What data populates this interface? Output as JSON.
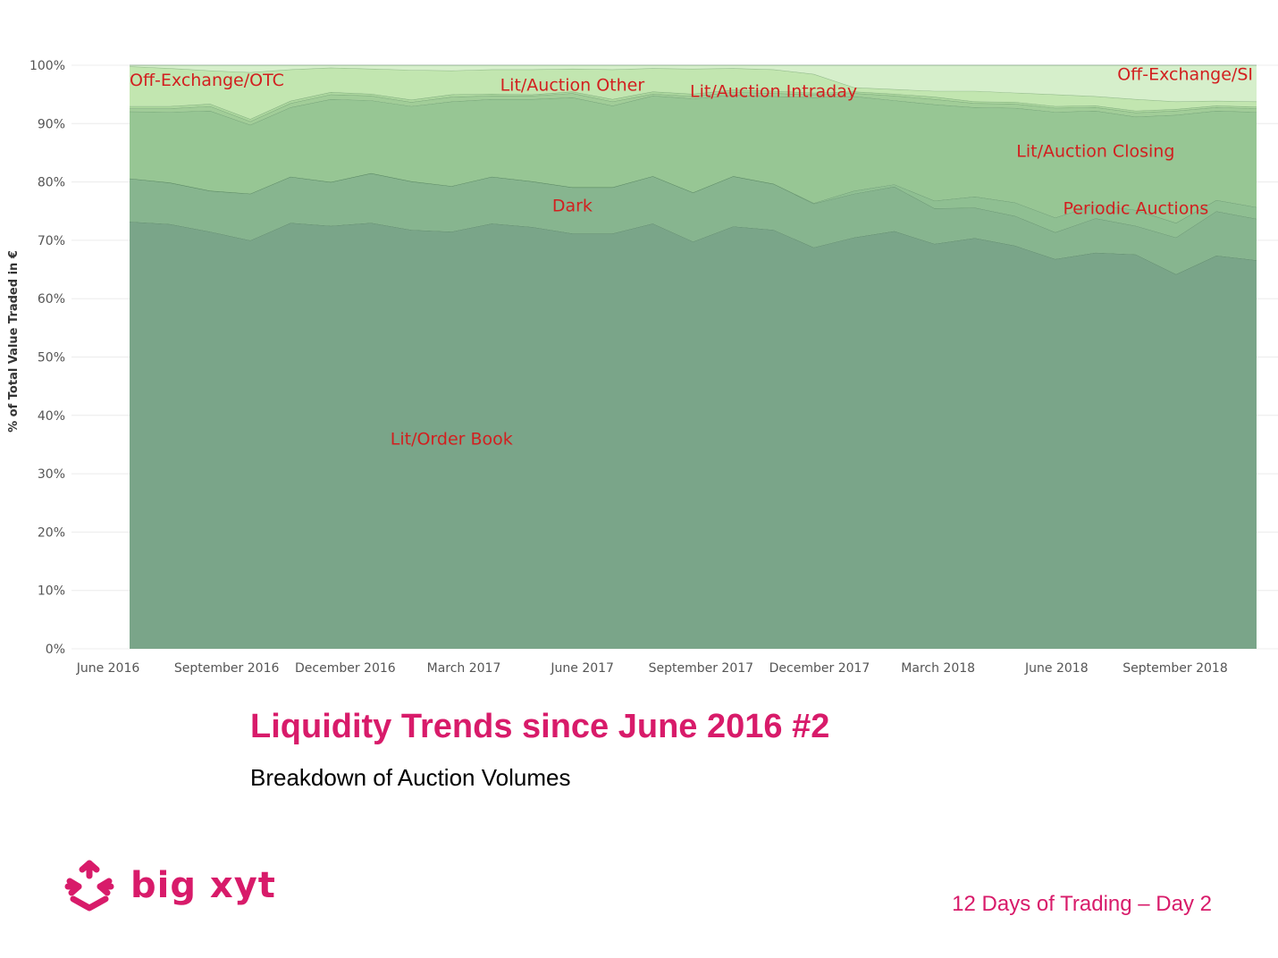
{
  "title": "Liquidity Trends since June 2016 #2",
  "subtitle": "Breakdown of Auction Volumes",
  "footer": "12 Days of Trading – Day 2",
  "brand": {
    "name": "big xyt",
    "color": "#d81b6a"
  },
  "chart_data": {
    "type": "area",
    "stacked": true,
    "ylabel": "% of Total Value Traded in €",
    "ylim": [
      0,
      100
    ],
    "y_ticks": [
      "0%",
      "10%",
      "20%",
      "30%",
      "40%",
      "50%",
      "60%",
      "70%",
      "80%",
      "90%",
      "100%"
    ],
    "x_ticks": [
      "June 2016",
      "September 2016",
      "December 2016",
      "March 2017",
      "June 2017",
      "September 2017",
      "December 2017",
      "March 2018",
      "June 2018",
      "September 2018"
    ],
    "x": [
      "2016-07",
      "2016-08",
      "2016-09",
      "2016-10",
      "2016-11",
      "2016-12",
      "2017-01",
      "2017-02",
      "2017-03",
      "2017-04",
      "2017-05",
      "2017-06",
      "2017-07",
      "2017-08",
      "2017-09",
      "2017-10",
      "2017-11",
      "2017-12",
      "2018-01",
      "2018-02",
      "2018-03",
      "2018-04",
      "2018-05",
      "2018-06",
      "2018-07",
      "2018-08",
      "2018-09",
      "2018-10",
      "2018-11"
    ],
    "cumulative": true,
    "grid": true,
    "series": [
      {
        "name": "Lit/Order Book",
        "color": "#7aa589",
        "label_at": [
          "2017-03",
          35
        ],
        "values": [
          73.2,
          72.8,
          71.5,
          70.0,
          73.0,
          72.5,
          73.0,
          71.8,
          71.5,
          72.9,
          72.3,
          71.2,
          71.2,
          72.9,
          69.8,
          72.4,
          71.8,
          68.8,
          70.5,
          71.6,
          69.4,
          70.4,
          69.1,
          66.8,
          67.9,
          67.6,
          64.2,
          67.4,
          66.6
        ]
      },
      {
        "name": "Dark",
        "color": "#87b58f",
        "label_at": [
          "2017-06",
          75
        ],
        "values": [
          80.6,
          79.9,
          78.5,
          78.0,
          80.9,
          80.0,
          81.5,
          80.1,
          79.3,
          80.9,
          80.1,
          79.1,
          79.1,
          81.0,
          78.2,
          81.0,
          79.7,
          76.3,
          78.0,
          79.2,
          75.5,
          75.6,
          74.2,
          71.4,
          73.8,
          72.5,
          70.5,
          75.0,
          73.7
        ]
      },
      {
        "name": "Periodic Auctions",
        "color": "#8fbf92",
        "label_at": [
          "2018-08",
          74.5
        ],
        "values": [
          80.6,
          79.9,
          78.5,
          78.0,
          80.9,
          80.0,
          81.5,
          80.1,
          79.3,
          80.9,
          80.1,
          79.1,
          79.1,
          81.0,
          78.2,
          81.0,
          79.7,
          76.4,
          78.5,
          79.6,
          76.8,
          77.5,
          76.5,
          73.9,
          76.1,
          75.2,
          73.0,
          76.9,
          75.7
        ]
      },
      {
        "name": "Lit/Auction Closing",
        "color": "#97c694",
        "label_at": [
          "2018-07",
          84.3
        ],
        "values": [
          92.1,
          92.0,
          92.2,
          89.8,
          92.8,
          94.2,
          94.0,
          93.0,
          93.8,
          94.2,
          94.2,
          94.5,
          93.1,
          94.8,
          94.3,
          94.9,
          94.7,
          94.5,
          94.7,
          94.0,
          93.3,
          92.8,
          92.7,
          92.0,
          92.2,
          91.2,
          91.5,
          92.2,
          92.0
        ]
      },
      {
        "name": "Lit/Auction Intraday",
        "color": "#a1cd98",
        "label_at": [
          "2017-11",
          94.6
        ],
        "values": [
          92.6,
          92.6,
          93.0,
          90.4,
          93.5,
          95.0,
          94.8,
          93.7,
          94.6,
          94.8,
          94.8,
          95.2,
          93.8,
          95.1,
          94.7,
          95.4,
          95.2,
          95.0,
          95.2,
          94.8,
          94.2,
          93.5,
          93.4,
          92.7,
          92.8,
          91.9,
          92.2,
          92.8,
          92.6
        ]
      },
      {
        "name": "Lit/Auction Other",
        "color": "#acd79e",
        "label_at": [
          "2017-06",
          95.6
        ],
        "values": [
          93.0,
          93.0,
          93.4,
          90.8,
          93.9,
          95.4,
          95.1,
          94.1,
          95.0,
          95.1,
          95.0,
          95.5,
          94.2,
          95.5,
          95.1,
          95.8,
          95.6,
          95.3,
          95.5,
          95.1,
          94.6,
          93.8,
          93.7,
          93.0,
          93.1,
          92.2,
          92.5,
          93.1,
          92.9
        ]
      },
      {
        "name": "Off-Exchange/OTC",
        "color": "#c2e6b0",
        "label_at": [
          "2016-07",
          96.5
        ],
        "values": [
          99.8,
          99.5,
          99.1,
          98.8,
          99.3,
          99.6,
          99.4,
          99.2,
          99.1,
          99.3,
          99.3,
          99.4,
          99.3,
          99.5,
          99.4,
          99.5,
          99.3,
          98.5,
          96.2,
          95.9,
          95.6,
          95.6,
          95.3,
          95.0,
          94.7,
          94.2,
          93.8,
          93.9,
          93.8
        ]
      },
      {
        "name": "Off-Exchange/SI",
        "color": "#d6efcb",
        "label_at": [
          "2018-11",
          97.5
        ],
        "values": [
          100,
          100,
          100,
          100,
          100,
          100,
          100,
          100,
          100,
          100,
          100,
          100,
          100,
          100,
          100,
          100,
          100,
          100,
          100,
          100,
          100,
          100,
          100,
          100,
          100,
          100,
          100,
          100,
          100
        ]
      }
    ]
  }
}
